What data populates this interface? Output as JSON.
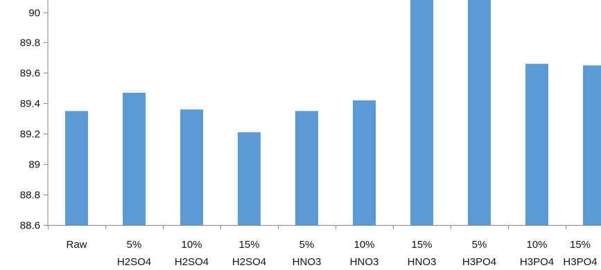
{
  "chart_data": {
    "type": "bar",
    "categories": [
      [
        "Raw"
      ],
      [
        "5%",
        "H2SO4"
      ],
      [
        "10%",
        "H2SO4"
      ],
      [
        "15%",
        "H2SO4"
      ],
      [
        "5%",
        "HNO3"
      ],
      [
        "10%",
        "HNO3"
      ],
      [
        "15%",
        "HNO3"
      ],
      [
        "5%",
        "H3PO4"
      ],
      [
        "10%",
        "H3PO4"
      ],
      [
        "15%",
        "H3PO4"
      ]
    ],
    "values": [
      89.35,
      89.47,
      89.36,
      89.21,
      89.35,
      89.42,
      90.1,
      90.1,
      89.66,
      89.65
    ],
    "title": "",
    "xlabel": "",
    "ylabel": "",
    "ylim": [
      88.6,
      90.08
    ],
    "yticks": [
      "88.6",
      "88.8",
      "89",
      "89.2",
      "89.4",
      "89.6",
      "89.8",
      "90"
    ],
    "ytick_values": [
      88.6,
      88.8,
      89.0,
      89.2,
      89.4,
      89.6,
      89.8,
      90.0
    ],
    "grid": false,
    "legend": "none",
    "bar_color": "#5B9BD5",
    "axis_color": "#868686"
  }
}
